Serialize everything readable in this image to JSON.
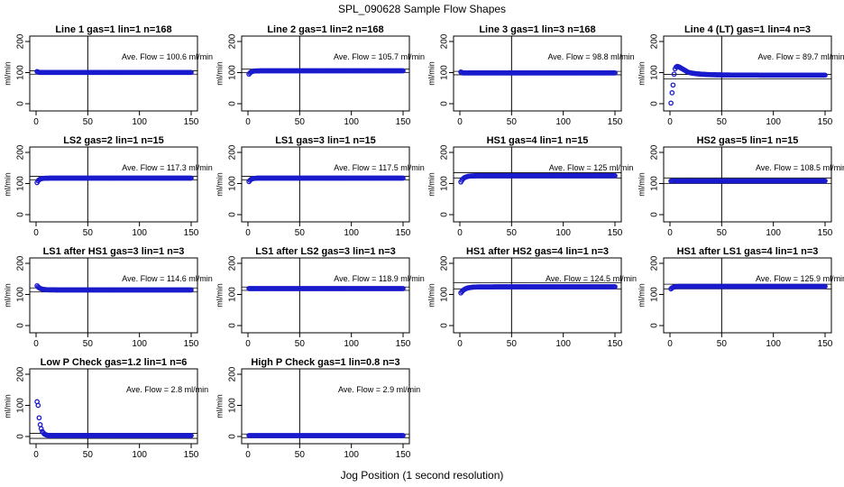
{
  "title": "SPL_090628  Sample Flow Shapes",
  "xlabel": "Jog Position (1 second resolution)",
  "chart_data": {
    "type": "scatter",
    "grid": false,
    "panels": [
      {
        "title": "Line 1 gas=1 lin=1 n=168",
        "ylabel": "ml/min",
        "avg_text": "Ave. Flow = 100.6  ml/min",
        "xlim": [
          0,
          150
        ],
        "ylim": [
          0,
          200
        ],
        "xticks": [
          "0",
          "50",
          "100",
          "150"
        ],
        "yticks": [
          "0",
          "100",
          "200"
        ],
        "vline_x": 50,
        "hlines": [
          95,
          106
        ],
        "avg": 100.6,
        "profile": {
          "kind": "flat",
          "level": 100.6,
          "start": 105
        }
      },
      {
        "title": "Line 2 gas=1 lin=2 n=168",
        "ylabel": "ml/min",
        "avg_text": "Ave. Flow = 105.7  ml/min",
        "xlim": [
          0,
          150
        ],
        "ylim": [
          0,
          200
        ],
        "xticks": [
          "0",
          "50",
          "100",
          "150"
        ],
        "yticks": [
          "0",
          "100",
          "200"
        ],
        "vline_x": 50,
        "hlines": [
          100,
          111
        ],
        "avg": 105.7,
        "profile": {
          "kind": "rise",
          "level": 105.7,
          "start": 95,
          "tau": 2
        }
      },
      {
        "title": "Line 3 gas=1 lin=3 n=168",
        "ylabel": "ml/min",
        "avg_text": "Ave. Flow = 98.8  ml/min",
        "xlim": [
          0,
          150
        ],
        "ylim": [
          0,
          200
        ],
        "xticks": [
          "0",
          "50",
          "100",
          "150"
        ],
        "yticks": [
          "0",
          "100",
          "200"
        ],
        "vline_x": 50,
        "hlines": [
          93,
          104
        ],
        "avg": 98.8,
        "profile": {
          "kind": "flat",
          "level": 98.8,
          "start": 103
        }
      },
      {
        "title": "Line 4 (LT) gas=1 lin=4 n=3",
        "ylabel": "ml/min",
        "avg_text": "Ave. Flow = 89.7  ml/min",
        "xlim": [
          0,
          150
        ],
        "ylim": [
          0,
          200
        ],
        "xticks": [
          "0",
          "50",
          "100",
          "150"
        ],
        "yticks": [
          "0",
          "100",
          "200"
        ],
        "vline_x": 50,
        "hlines": [
          80,
          94
        ],
        "avg": 89.7,
        "profile": {
          "kind": "overshoot",
          "points": [
            [
              1,
              2
            ],
            [
              2,
              35
            ],
            [
              3,
              60
            ],
            [
              4,
              95
            ],
            [
              5,
              112
            ],
            [
              6,
              118
            ],
            [
              7,
              120
            ],
            [
              8,
              119
            ],
            [
              9,
              118
            ],
            [
              10,
              116
            ],
            [
              11,
              114
            ],
            [
              12,
              112
            ],
            [
              13,
              110
            ],
            [
              14,
              108
            ],
            [
              15,
              106
            ],
            [
              16,
              104
            ],
            [
              17,
              102
            ],
            [
              18,
              101
            ],
            [
              19,
              100
            ],
            [
              20,
              99
            ]
          ],
          "level": 89.7,
          "decay_to": 92
        }
      },
      {
        "title": "LS2 gas=2 lin=1 n=15",
        "ylabel": "ml/min",
        "avg_text": "Ave. Flow = 117.3  ml/min",
        "xlim": [
          0,
          150
        ],
        "ylim": [
          0,
          200
        ],
        "xticks": [
          "0",
          "50",
          "100",
          "150"
        ],
        "yticks": [
          "0",
          "100",
          "200"
        ],
        "vline_x": 50,
        "hlines": [
          112,
          123
        ],
        "avg": 117.3,
        "profile": {
          "kind": "rise",
          "level": 117.3,
          "start": 103,
          "tau": 2
        }
      },
      {
        "title": "LS1 gas=3 lin=1 n=15",
        "ylabel": "ml/min",
        "avg_text": "Ave. Flow = 117.5  ml/min",
        "xlim": [
          0,
          150
        ],
        "ylim": [
          0,
          200
        ],
        "xticks": [
          "0",
          "50",
          "100",
          "150"
        ],
        "yticks": [
          "0",
          "100",
          "200"
        ],
        "vline_x": 50,
        "hlines": [
          112,
          123
        ],
        "avg": 117.5,
        "profile": {
          "kind": "rise",
          "level": 117.5,
          "start": 106,
          "tau": 2
        }
      },
      {
        "title": "HS1 gas=4 lin=1 n=15",
        "ylabel": "ml/min",
        "avg_text": "Ave. Flow = 125  ml/min",
        "xlim": [
          0,
          150
        ],
        "ylim": [
          0,
          200
        ],
        "xticks": [
          "0",
          "50",
          "100",
          "150"
        ],
        "yticks": [
          "0",
          "100",
          "200"
        ],
        "vline_x": 50,
        "hlines": [
          118,
          135
        ],
        "avg": 125,
        "profile": {
          "kind": "rise",
          "level": 125,
          "start": 105,
          "tau": 3
        }
      },
      {
        "title": "HS2 gas=5 lin=1 n=15",
        "ylabel": "ml/min",
        "avg_text": "Ave. Flow = 108.5  ml/min",
        "xlim": [
          0,
          150
        ],
        "ylim": [
          0,
          200
        ],
        "xticks": [
          "0",
          "50",
          "100",
          "150"
        ],
        "yticks": [
          "0",
          "100",
          "200"
        ],
        "vline_x": 50,
        "hlines": [
          100,
          118
        ],
        "avg": 108.5,
        "profile": {
          "kind": "flat",
          "level": 108.5,
          "start": 108
        }
      },
      {
        "title": "LS1 after HS1 gas=3 lin=1 n=3",
        "ylabel": "ml/min",
        "avg_text": "Ave. Flow = 114.6  ml/min",
        "xlim": [
          0,
          150
        ],
        "ylim": [
          0,
          200
        ],
        "xticks": [
          "0",
          "50",
          "100",
          "150"
        ],
        "yticks": [
          "0",
          "100",
          "200"
        ],
        "vline_x": 50,
        "hlines": [
          108,
          121
        ],
        "avg": 114.6,
        "profile": {
          "kind": "fall",
          "level": 114.6,
          "start": 128,
          "tau": 3
        }
      },
      {
        "title": "LS1 after LS2 gas=3 lin=1 n=3",
        "ylabel": "ml/min",
        "avg_text": "Ave. Flow = 118.9  ml/min",
        "xlim": [
          0,
          150
        ],
        "ylim": [
          0,
          200
        ],
        "xticks": [
          "0",
          "50",
          "100",
          "150"
        ],
        "yticks": [
          "0",
          "100",
          "200"
        ],
        "vline_x": 50,
        "hlines": [
          113,
          124
        ],
        "avg": 118.9,
        "profile": {
          "kind": "flat",
          "level": 118.9,
          "start": 119
        }
      },
      {
        "title": "HS1 after HS2 gas=4 lin=1 n=3",
        "ylabel": "ml/min",
        "avg_text": "Ave. Flow = 124.5  ml/min",
        "xlim": [
          0,
          150
        ],
        "ylim": [
          0,
          200
        ],
        "xticks": [
          "0",
          "50",
          "100",
          "150"
        ],
        "yticks": [
          "0",
          "100",
          "200"
        ],
        "vline_x": 50,
        "hlines": [
          118,
          138
        ],
        "avg": 124.5,
        "profile": {
          "kind": "rise",
          "level": 124.5,
          "start": 105,
          "tau": 4
        }
      },
      {
        "title": "HS1 after LS1 gas=4 lin=1 n=3",
        "ylabel": "ml/min",
        "avg_text": "Ave. Flow = 125.9  ml/min",
        "xlim": [
          0,
          150
        ],
        "ylim": [
          0,
          200
        ],
        "xticks": [
          "0",
          "50",
          "100",
          "150"
        ],
        "yticks": [
          "0",
          "100",
          "200"
        ],
        "vline_x": 50,
        "hlines": [
          118,
          133
        ],
        "avg": 125.9,
        "profile": {
          "kind": "rise",
          "level": 125.9,
          "start": 118,
          "tau": 2
        }
      },
      {
        "title": "Low P Check gas=1.2 lin=1 n=6",
        "ylabel": "ml/min",
        "avg_text": "Ave. Flow = 2.8  ml/min",
        "xlim": [
          0,
          150
        ],
        "ylim": [
          0,
          200
        ],
        "xticks": [
          "0",
          "50",
          "100",
          "150"
        ],
        "yticks": [
          "0",
          "100",
          "200"
        ],
        "vline_x": 50,
        "hlines": [
          -6,
          10
        ],
        "avg": 2.8,
        "profile": {
          "kind": "decay",
          "points": [
            [
              1,
              112
            ],
            [
              2,
              100
            ],
            [
              3,
              60
            ],
            [
              4,
              38
            ],
            [
              5,
              25
            ],
            [
              6,
              16
            ],
            [
              7,
              12
            ],
            [
              8,
              8
            ],
            [
              9,
              6
            ],
            [
              10,
              5
            ],
            [
              11,
              4
            ],
            [
              12,
              3
            ]
          ],
          "level": 2.8
        }
      },
      {
        "title": "High P Check gas=1 lin=0.8 n=3",
        "ylabel": "ml/min",
        "avg_text": "Ave. Flow = 2.9  ml/min",
        "xlim": [
          0,
          150
        ],
        "ylim": [
          0,
          200
        ],
        "xticks": [
          "0",
          "50",
          "100",
          "150"
        ],
        "yticks": [
          "0",
          "100",
          "200"
        ],
        "vline_x": 50,
        "hlines": [
          -4,
          8
        ],
        "avg": 2.9,
        "profile": {
          "kind": "flat",
          "level": 2.9,
          "start": 3
        }
      }
    ]
  },
  "colors": {
    "points": "#1a1acd",
    "axis": "#000000",
    "background": "#ffffff"
  }
}
